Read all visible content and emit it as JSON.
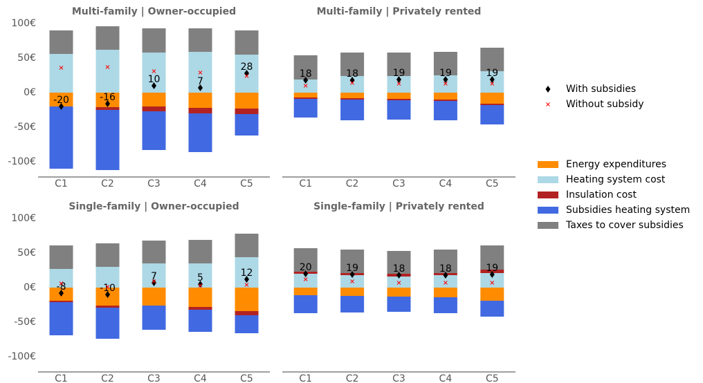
{
  "chart_data": [
    {
      "type": "bar",
      "stacked": true,
      "title": "Multi-family | Owner-occupied",
      "categories": [
        "C1",
        "C2",
        "C3",
        "C4",
        "C5"
      ],
      "ylim": [
        -122,
        104
      ],
      "yticks": [
        {
          "value": 100,
          "label": "100€"
        },
        {
          "value": 50,
          "label": "50€"
        },
        {
          "value": 0,
          "label": "0€"
        },
        {
          "value": -50,
          "label": "-50€"
        },
        {
          "value": -100,
          "label": "-100€"
        }
      ],
      "series": [
        {
          "name": "Energy expenditures",
          "color": "#ff8c00",
          "values": [
            -20,
            -21,
            -20,
            -22,
            -23
          ]
        },
        {
          "name": "Heating system cost",
          "color": "#add8e6",
          "values": [
            56,
            62,
            58,
            59,
            55
          ]
        },
        {
          "name": "Insulation cost",
          "color": "#b22222",
          "values": [
            0,
            -4,
            -7,
            -8,
            -8
          ]
        },
        {
          "name": "Subsidies heating system",
          "color": "#4169e1",
          "values": [
            -90,
            -87,
            -56,
            -56,
            -31
          ]
        },
        {
          "name": "Taxes to cover subsidies",
          "color": "#808080",
          "values": [
            34,
            34,
            35,
            34,
            35
          ]
        }
      ],
      "markers": [
        {
          "name": "With subsidies",
          "marker": "diamond",
          "color": "#000000",
          "values": [
            -20,
            -16,
            10,
            7,
            28
          ]
        },
        {
          "name": "Without subsidy",
          "marker": "x",
          "color": "#ff0000",
          "values": [
            36,
            37,
            31,
            29,
            24
          ]
        }
      ]
    },
    {
      "type": "bar",
      "stacked": true,
      "title": "Multi-family | Privately rented",
      "categories": [
        "C1",
        "C2",
        "C3",
        "C4",
        "C5"
      ],
      "ylim": [
        -122,
        104
      ],
      "series": [
        {
          "values": [
            -7,
            -8,
            -9,
            -10,
            -16
          ]
        },
        {
          "values": [
            19,
            24,
            24,
            25,
            31
          ]
        },
        {
          "values": [
            -2,
            -2,
            -2,
            -2,
            -2
          ]
        },
        {
          "values": [
            -27,
            -30,
            -28,
            -28,
            -28
          ]
        },
        {
          "values": [
            35,
            34,
            34,
            34,
            34
          ]
        }
      ],
      "markers": [
        {
          "values": [
            18,
            18,
            19,
            19,
            19
          ]
        },
        {
          "values": [
            10,
            14,
            13,
            13,
            13
          ]
        }
      ]
    },
    {
      "type": "bar",
      "stacked": true,
      "title": "Single-family | Owner-occupied",
      "categories": [
        "C1",
        "C2",
        "C3",
        "C4",
        "C5"
      ],
      "ylim": [
        -122,
        104
      ],
      "yticks": [
        {
          "value": 100,
          "label": "100€"
        },
        {
          "value": 50,
          "label": "50€"
        },
        {
          "value": 0,
          "label": "0€"
        },
        {
          "value": -50,
          "label": "-50€"
        },
        {
          "value": -100,
          "label": "-100€"
        }
      ],
      "series": [
        {
          "values": [
            -19,
            -26,
            -26,
            -28,
            -34
          ]
        },
        {
          "values": [
            27,
            30,
            35,
            35,
            44
          ]
        },
        {
          "values": [
            -2,
            -3,
            0,
            -4,
            -6
          ]
        },
        {
          "values": [
            -48,
            -45,
            -35,
            -32,
            -26
          ]
        },
        {
          "values": [
            34,
            34,
            33,
            34,
            34
          ]
        }
      ],
      "markers": [
        {
          "values": [
            -8,
            -10,
            7,
            5,
            12
          ]
        },
        {
          "values": [
            6,
            1,
            9,
            3,
            4
          ]
        }
      ]
    },
    {
      "type": "bar",
      "stacked": true,
      "title": "Single-family | Privately rented",
      "categories": [
        "C1",
        "C2",
        "C3",
        "C4",
        "C5"
      ],
      "ylim": [
        -122,
        104
      ],
      "series": [
        {
          "values": [
            -11,
            -12,
            -13,
            -14,
            -19
          ]
        },
        {
          "values": [
            20,
            18,
            16,
            18,
            21
          ]
        },
        {
          "values": [
            3,
            3,
            4,
            3,
            5
          ]
        },
        {
          "values": [
            -26,
            -24,
            -22,
            -23,
            -23
          ]
        },
        {
          "values": [
            34,
            34,
            33,
            34,
            35
          ]
        }
      ],
      "markers": [
        {
          "values": [
            20,
            19,
            18,
            18,
            19
          ]
        },
        {
          "values": [
            12,
            9,
            7,
            7,
            7
          ]
        }
      ]
    }
  ]
}
